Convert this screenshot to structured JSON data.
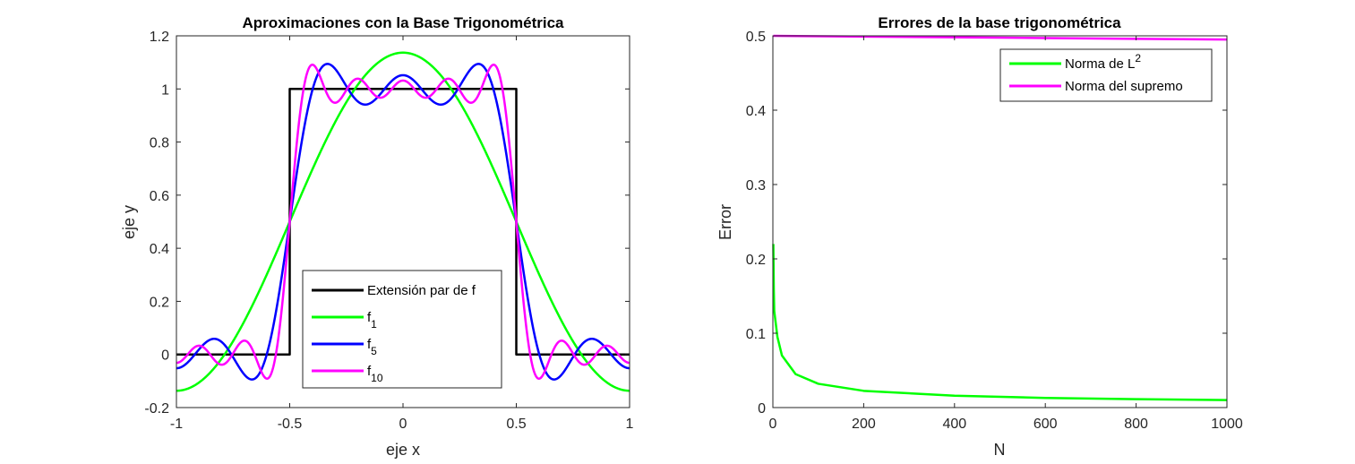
{
  "chart_data": [
    {
      "type": "line",
      "title": "Aproximaciones con la Base Trigonométrica",
      "xlabel": "eje x",
      "ylabel": "eje y",
      "xlim": [
        -1,
        1
      ],
      "ylim": [
        -0.2,
        1.2
      ],
      "xticks": [
        -1,
        -0.5,
        0,
        0.5,
        1
      ],
      "xtick_labels": [
        "-1",
        "-0.5",
        "0",
        "0.5",
        "1"
      ],
      "yticks": [
        -0.2,
        0,
        0.2,
        0.4,
        0.6,
        0.8,
        1,
        1.2
      ],
      "ytick_labels": [
        "-0.2",
        "0",
        "0.2",
        "0.4",
        "0.6",
        "0.8",
        "1",
        "1.2"
      ],
      "legend_position": "bottom-center",
      "series": [
        {
          "name": "Extensión par de f",
          "legend_main": "Extensión par de f",
          "legend_sub": "",
          "color": "#000000",
          "kind": "step",
          "x": [
            -1,
            -0.5,
            -0.5,
            0.5,
            0.5,
            1
          ],
          "y": [
            0,
            0,
            1,
            1,
            0,
            0
          ]
        },
        {
          "name": "f_1",
          "legend_main": "f",
          "legend_sub": "1",
          "color": "#00ff00",
          "kind": "fourier",
          "terms": 1
        },
        {
          "name": "f_5",
          "legend_main": "f",
          "legend_sub": "5",
          "color": "#0000ff",
          "kind": "fourier",
          "terms": 5
        },
        {
          "name": "f_10",
          "legend_main": "f",
          "legend_sub": "10",
          "color": "#ff00ff",
          "kind": "fourier",
          "terms": 10
        }
      ]
    },
    {
      "type": "line",
      "title": "Errores de la base trigonométrica",
      "xlabel": "N",
      "ylabel": "Error",
      "xlim": [
        0,
        1000
      ],
      "ylim": [
        0,
        0.5
      ],
      "xticks": [
        0,
        200,
        400,
        600,
        800,
        1000
      ],
      "xtick_labels": [
        "0",
        "200",
        "400",
        "600",
        "800",
        "1000"
      ],
      "yticks": [
        0,
        0.1,
        0.2,
        0.3,
        0.4,
        0.5
      ],
      "ytick_labels": [
        "0",
        "0.1",
        "0.2",
        "0.3",
        "0.4",
        "0.5"
      ],
      "legend_position": "top-right",
      "series": [
        {
          "name": "Norma de L^2",
          "legend_main": "Norma de L",
          "legend_sup": "2",
          "color": "#00ff00",
          "x": [
            1,
            2,
            3,
            5,
            10,
            20,
            50,
            100,
            200,
            400,
            600,
            800,
            1000
          ],
          "y": [
            0.22,
            0.16,
            0.13,
            0.12,
            0.095,
            0.07,
            0.045,
            0.032,
            0.0225,
            0.016,
            0.013,
            0.0113,
            0.0101
          ]
        },
        {
          "name": "Norma del supremo",
          "legend_main": "Norma del supremo",
          "legend_sup": "",
          "color": "#ff00ff",
          "x": [
            1,
            200,
            400,
            600,
            800,
            1000
          ],
          "y": [
            0.5,
            0.499,
            0.498,
            0.497,
            0.496,
            0.495
          ]
        }
      ]
    }
  ]
}
